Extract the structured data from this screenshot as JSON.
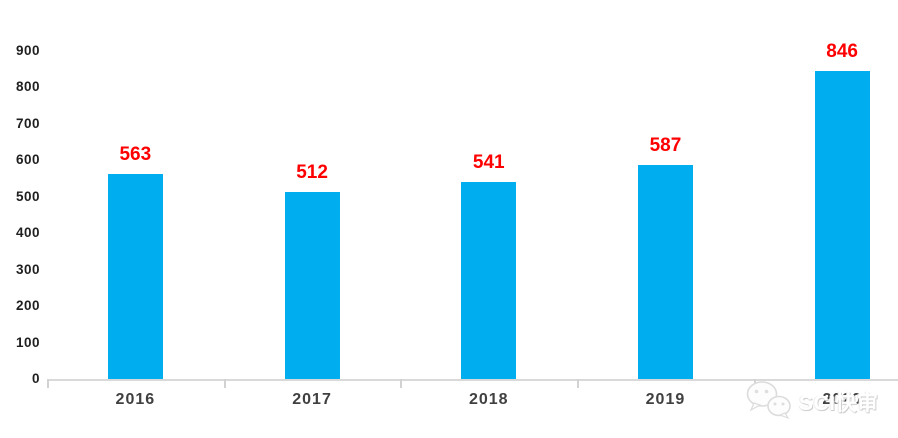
{
  "chart_data": {
    "type": "bar",
    "categories": [
      "2016",
      "2017",
      "2018",
      "2019",
      "2020"
    ],
    "values": [
      563,
      512,
      541,
      587,
      846
    ],
    "title": "",
    "xlabel": "",
    "ylabel": "",
    "ylim": [
      0,
      900
    ],
    "yticks": [
      0,
      100,
      200,
      300,
      400,
      500,
      600,
      700,
      800,
      900
    ],
    "grid": false,
    "legend": false,
    "bar_color": "#00AEEF",
    "value_label_color": "#FF0000",
    "axis_color": "#d9d9d9",
    "ytick_label_color": "#1f1f1f",
    "xtick_label_color": "#404040"
  },
  "watermark": {
    "icon": "wechat-icon",
    "text": "SCI快审"
  }
}
